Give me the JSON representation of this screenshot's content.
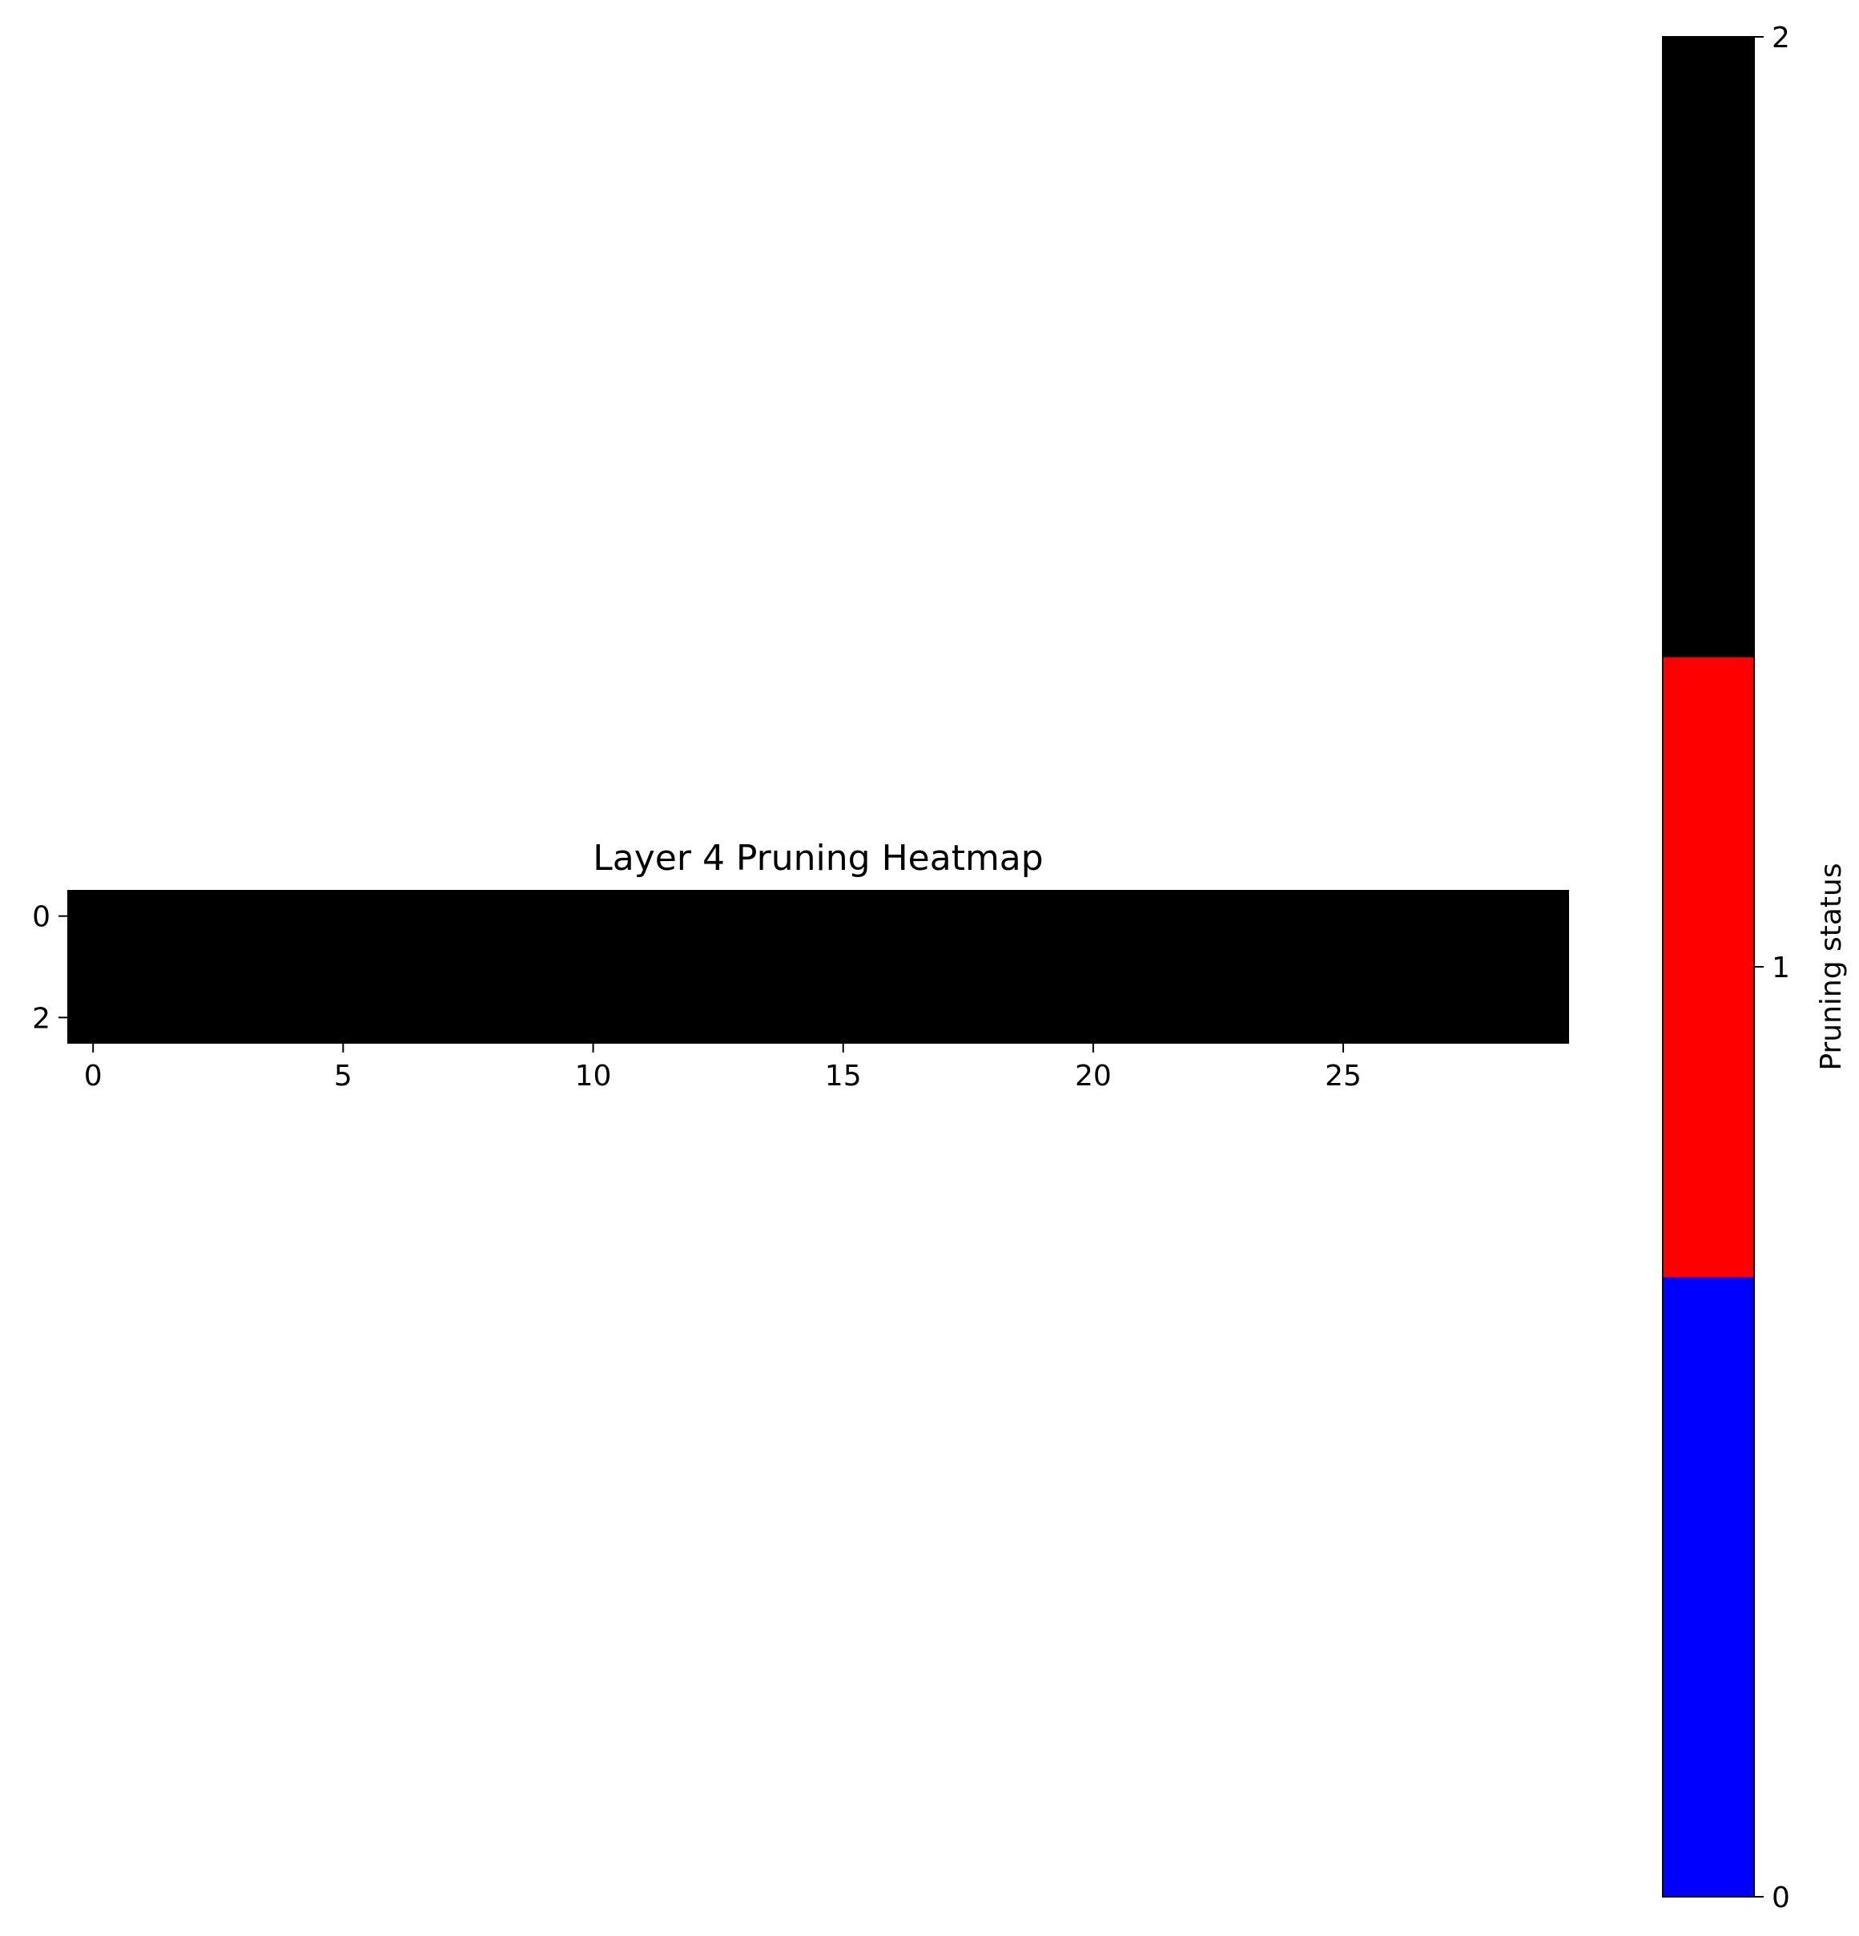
{
  "chart_data": {
    "type": "heatmap",
    "title": "Layer 4 Pruning Heatmap",
    "rows": 3,
    "cols": 30,
    "values": [
      [
        2,
        2,
        2,
        2,
        2,
        2,
        2,
        2,
        2,
        2,
        2,
        2,
        2,
        2,
        2,
        2,
        2,
        2,
        2,
        2,
        2,
        2,
        2,
        2,
        2,
        2,
        2,
        2,
        2,
        2
      ],
      [
        2,
        2,
        2,
        2,
        2,
        2,
        2,
        2,
        2,
        2,
        2,
        2,
        2,
        2,
        2,
        2,
        2,
        2,
        2,
        2,
        2,
        2,
        2,
        2,
        2,
        2,
        2,
        2,
        2,
        2
      ],
      [
        2,
        2,
        2,
        2,
        2,
        2,
        2,
        2,
        2,
        2,
        2,
        2,
        2,
        2,
        2,
        2,
        2,
        2,
        2,
        2,
        2,
        2,
        2,
        2,
        2,
        2,
        2,
        2,
        2,
        2
      ]
    ],
    "xticks": [
      0,
      5,
      10,
      15,
      20,
      25
    ],
    "yticks": [
      0,
      2
    ],
    "colorbar": {
      "label": "Pruning status",
      "range": [
        0,
        2
      ],
      "ticks": [
        0,
        1,
        2
      ],
      "levels": [
        {
          "value": 0,
          "color": "#0000ff"
        },
        {
          "value": 1,
          "color": "#ff0000"
        },
        {
          "value": 2,
          "color": "#000000"
        }
      ]
    }
  }
}
